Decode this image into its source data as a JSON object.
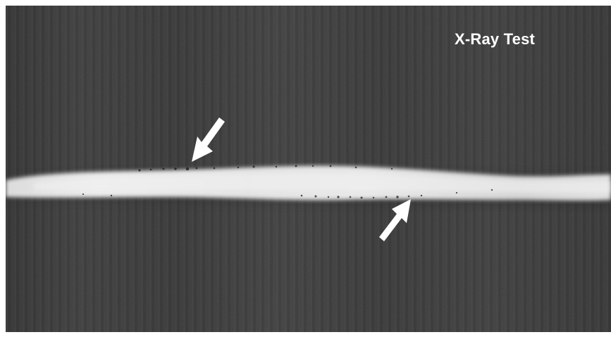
{
  "image": {
    "title": "X-Ray Test",
    "background_color": "#464646",
    "weld_seam_color": "#e6e6e6",
    "annotation_color": "#ffffff",
    "icons": [
      "arrow-down-left-icon",
      "arrow-up-right-icon"
    ]
  }
}
